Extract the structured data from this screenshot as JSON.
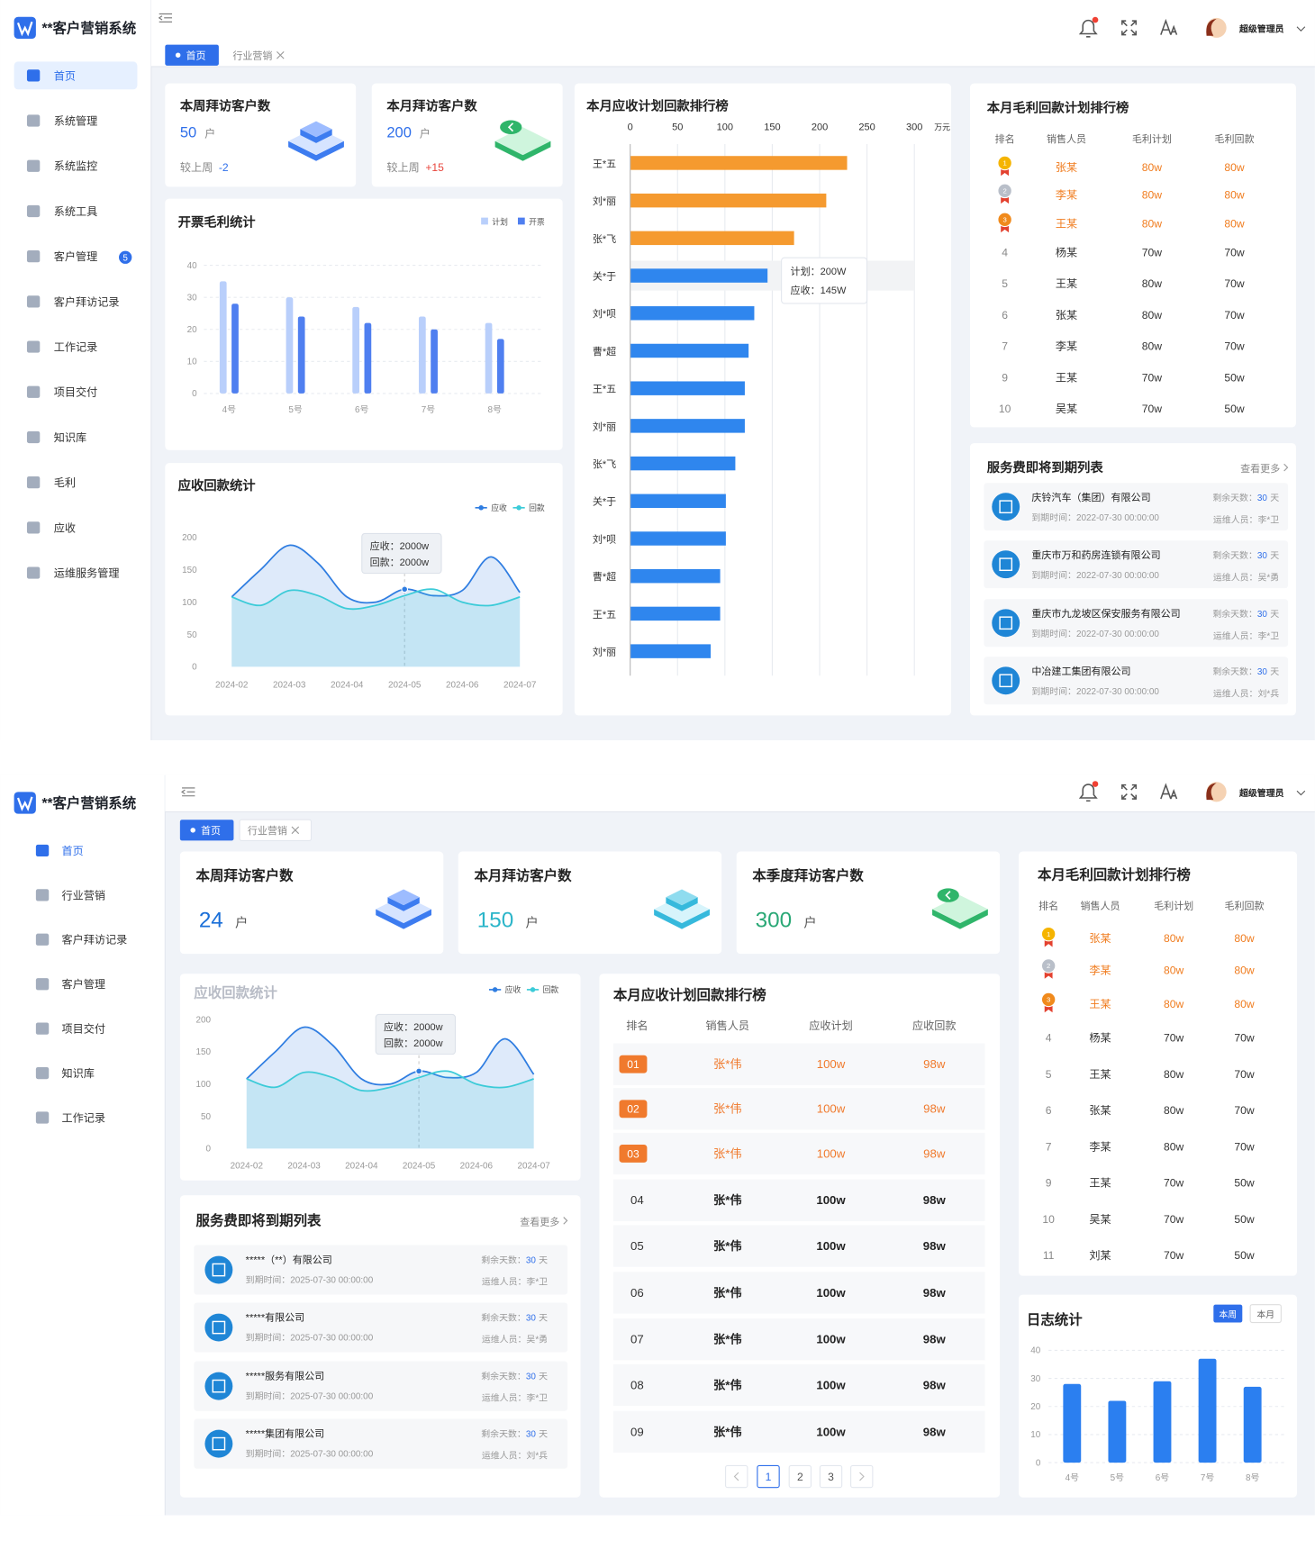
{
  "dashboard1": {
    "app_title": "**客户营销系统",
    "menu": [
      {
        "label": "首页"
      },
      {
        "label": "系统管理"
      },
      {
        "label": "系统监控"
      },
      {
        "label": "系统工具"
      },
      {
        "label": "客户管理",
        "badge": 5
      },
      {
        "label": "客户拜访记录"
      },
      {
        "label": "工作记录"
      },
      {
        "label": "项目交付"
      },
      {
        "label": "知识库"
      },
      {
        "label": "毛利"
      },
      {
        "label": "应收"
      },
      {
        "label": "运维服务管理"
      }
    ],
    "tabs": [
      "首页",
      "行业营销"
    ],
    "user": "超级管理员",
    "stats": [
      {
        "title": "本周拜访客户数",
        "value": 50,
        "unit": "户",
        "compare_label": "较上周",
        "compare": "-2"
      },
      {
        "title": "本月拜访客户数",
        "value": 200,
        "unit": "户",
        "compare_label": "较上周",
        "compare": "+15"
      }
    ],
    "invoice_chart": {
      "type": "bar",
      "title": "开票毛利统计",
      "categories": [
        "4号",
        "5号",
        "6号",
        "7号",
        "8号"
      ],
      "series": [
        {
          "name": "计划",
          "color": "#b9cffb",
          "values": [
            35,
            30,
            27,
            24,
            22
          ]
        },
        {
          "name": "开票",
          "color": "#4f7ff0",
          "values": [
            28,
            24,
            22,
            20,
            17
          ]
        }
      ],
      "ylim": [
        0,
        40
      ],
      "yticks": [
        0,
        10,
        20,
        30,
        40
      ],
      "grid": true
    },
    "receivable_chart": {
      "type": "line",
      "title": "应收回款统计",
      "categories": [
        "2024-02",
        null,
        "2024-03",
        null,
        "2024-04",
        null,
        "2024-05",
        null,
        "2024-06",
        null,
        "2024-07"
      ],
      "series": [
        {
          "name": "应收",
          "color": "#2f7de1",
          "values": [
            108,
            150,
            188,
            160,
            108,
            100,
            120,
            110,
            118,
            170,
            115
          ]
        },
        {
          "name": "回款",
          "color": "#3ccbd8",
          "values": [
            108,
            95,
            118,
            110,
            90,
            95,
            110,
            120,
            100,
            95,
            108
          ]
        }
      ],
      "ylim": [
        0,
        200
      ],
      "yticks": [
        0,
        50,
        100,
        150,
        200
      ],
      "tooltip": [
        "应收：2000w",
        "回款：2000w"
      ]
    },
    "ranking_chart": {
      "type": "hbar",
      "title": "本月应收计划回款排行榜",
      "categories": [
        "王*五",
        "刘*丽",
        "张*飞",
        "关*于",
        "刘*呗",
        "曹*超",
        "王*五",
        "刘*丽",
        "张*飞",
        "关*于",
        "刘*呗",
        "曹*超",
        "王*五",
        "刘*丽"
      ],
      "values": [
        229,
        207,
        173,
        145,
        131,
        125,
        121,
        121,
        111,
        101,
        101,
        95,
        95,
        85
      ],
      "colors": [
        "#f59a2f",
        "#f59a2f",
        "#f59a2f",
        "#2f86ee",
        "#2f86ee",
        "#2f86ee",
        "#2f86ee",
        "#2f86ee",
        "#2f86ee",
        "#2f86ee",
        "#2f86ee",
        "#2f86ee",
        "#2f86ee",
        "#2f86ee"
      ],
      "xlim": [
        0,
        300
      ],
      "xticks": [
        0,
        50,
        100,
        150,
        200,
        250,
        300
      ],
      "xlabel": "万元",
      "grid": true,
      "tooltip": [
        "计划：200W",
        "应收：145W"
      ]
    },
    "profit_ranking": {
      "title": "本月毛利回款计划排行榜",
      "columns": [
        "排名",
        "销售人员",
        "毛利计划",
        "毛利回款"
      ],
      "rows": [
        [
          "1",
          "张某",
          "80w",
          "80w"
        ],
        [
          "2",
          "李某",
          "80w",
          "80w"
        ],
        [
          "3",
          "王某",
          "80w",
          "80w"
        ],
        [
          "4",
          "杨某",
          "70w",
          "70w"
        ],
        [
          "5",
          "王某",
          "80w",
          "70w"
        ],
        [
          "6",
          "张某",
          "80w",
          "70w"
        ],
        [
          "7",
          "李某",
          "80w",
          "70w"
        ],
        [
          "9",
          "王某",
          "70w",
          "50w"
        ],
        [
          "10",
          "吴某",
          "70w",
          "50w"
        ]
      ]
    },
    "service_list": {
      "title": "服务费即将到期列表",
      "more": "查看更多",
      "items": [
        {
          "company": "庆铃汽车（集团）有限公司",
          "due_label": "到期时间：",
          "due": "2022-07-30 00:00:00",
          "remain_label": "剩余天数：",
          "days": 30,
          "days_unit": "天",
          "operator_label": "运维人员：",
          "operator": "李*卫"
        },
        {
          "company": "重庆市万和药房连锁有限公司",
          "due_label": "到期时间：",
          "due": "2022-07-30 00:00:00",
          "remain_label": "剩余天数：",
          "days": 30,
          "days_unit": "天",
          "operator_label": "运维人员：",
          "operator": "吴*勇"
        },
        {
          "company": "重庆市九龙坡区保安服务有限公司",
          "due_label": "到期时间：",
          "due": "2022-07-30 00:00:00",
          "remain_label": "剩余天数：",
          "days": 30,
          "days_unit": "天",
          "operator_label": "运维人员：",
          "operator": "李*卫"
        },
        {
          "company": "中冶建工集团有限公司",
          "due_label": "到期时间：",
          "due": "2022-07-30 00:00:00",
          "remain_label": "剩余天数：",
          "days": 30,
          "days_unit": "天",
          "operator_label": "运维人员：",
          "operator": "刘*兵"
        }
      ]
    }
  },
  "dashboard2": {
    "app_title": "**客户营销系统",
    "menu": [
      {
        "label": "首页"
      },
      {
        "label": "行业营销"
      },
      {
        "label": "客户拜访记录"
      },
      {
        "label": "客户管理"
      },
      {
        "label": "项目交付"
      },
      {
        "label": "知识库"
      },
      {
        "label": "工作记录"
      }
    ],
    "tabs": [
      "首页",
      "行业营销"
    ],
    "user": "超级管理员",
    "stats": [
      {
        "title": "本周拜访客户数",
        "value": 24,
        "unit": "户"
      },
      {
        "title": "本月拜访客户数",
        "value": 150,
        "unit": "户"
      },
      {
        "title": "本季度拜访客户数",
        "value": 300,
        "unit": "户"
      }
    ],
    "receivable_chart": {
      "type": "line",
      "title": "应收回款统计",
      "categories": [
        "2024-02",
        null,
        "2024-03",
        null,
        "2024-04",
        null,
        "2024-05",
        null,
        "2024-06",
        null,
        "2024-07"
      ],
      "series": [
        {
          "name": "应收",
          "color": "#2f7de1",
          "values": [
            108,
            150,
            188,
            160,
            108,
            100,
            120,
            110,
            118,
            170,
            115
          ]
        },
        {
          "name": "回款",
          "color": "#3ccbd8",
          "values": [
            108,
            95,
            118,
            110,
            90,
            95,
            110,
            120,
            100,
            95,
            108
          ]
        }
      ],
      "ylim": [
        0,
        200
      ],
      "yticks": [
        0,
        50,
        100,
        150,
        200
      ],
      "tooltip": [
        "应收：2000w",
        "回款：2000w"
      ]
    },
    "service_list": {
      "title": "服务费即将到期列表",
      "more": "查看更多",
      "items": [
        {
          "company": "*****（**）有限公司",
          "due_label": "到期时间：",
          "due": "2025-07-30 00:00:00",
          "remain_label": "剩余天数：",
          "days": 30,
          "days_unit": "天",
          "operator_label": "运维人员：",
          "operator": "李*卫"
        },
        {
          "company": "*****有限公司",
          "due_label": "到期时间：",
          "due": "2025-07-30 00:00:00",
          "remain_label": "剩余天数：",
          "days": 30,
          "days_unit": "天",
          "operator_label": "运维人员：",
          "operator": "吴*勇"
        },
        {
          "company": "*****服务有限公司",
          "due_label": "到期时间：",
          "due": "2025-07-30 00:00:00",
          "remain_label": "剩余天数：",
          "days": 30,
          "days_unit": "天",
          "operator_label": "运维人员：",
          "operator": "李*卫"
        },
        {
          "company": "*****集团有限公司",
          "due_label": "到期时间：",
          "due": "2025-07-30 00:00:00",
          "remain_label": "剩余天数：",
          "days": 30,
          "days_unit": "天",
          "operator_label": "运维人员：",
          "operator": "刘*兵"
        }
      ]
    },
    "receivable_ranking": {
      "title": "本月应收计划回款排行榜",
      "columns": [
        "排名",
        "销售人员",
        "应收计划",
        "应收回款"
      ],
      "rows": [
        [
          "01",
          "张*伟",
          "100w",
          "98w"
        ],
        [
          "02",
          "张*伟",
          "100w",
          "98w"
        ],
        [
          "03",
          "张*伟",
          "100w",
          "98w"
        ],
        [
          "04",
          "张*伟",
          "100w",
          "98w"
        ],
        [
          "05",
          "张*伟",
          "100w",
          "98w"
        ],
        [
          "06",
          "张*伟",
          "100w",
          "98w"
        ],
        [
          "07",
          "张*伟",
          "100w",
          "98w"
        ],
        [
          "08",
          "张*伟",
          "100w",
          "98w"
        ],
        [
          "09",
          "张*伟",
          "100w",
          "98w"
        ]
      ],
      "pages": [
        "1",
        "2",
        "3"
      ]
    },
    "profit_ranking": {
      "title": "本月毛利回款计划排行榜",
      "columns": [
        "排名",
        "销售人员",
        "毛利计划",
        "毛利回款"
      ],
      "rows": [
        [
          "1",
          "张某",
          "80w",
          "80w"
        ],
        [
          "2",
          "李某",
          "80w",
          "80w"
        ],
        [
          "3",
          "王某",
          "80w",
          "80w"
        ],
        [
          "4",
          "杨某",
          "70w",
          "70w"
        ],
        [
          "5",
          "王某",
          "80w",
          "70w"
        ],
        [
          "6",
          "张某",
          "80w",
          "70w"
        ],
        [
          "7",
          "李某",
          "80w",
          "70w"
        ],
        [
          "9",
          "王某",
          "70w",
          "50w"
        ],
        [
          "10",
          "吴某",
          "70w",
          "50w"
        ],
        [
          "11",
          "刘某",
          "70w",
          "50w"
        ]
      ]
    },
    "log_chart": {
      "type": "bar",
      "title": "日志统计",
      "toggle": [
        "本周",
        "本月"
      ],
      "categories": [
        "4号",
        "5号",
        "6号",
        "7号",
        "8号"
      ],
      "values": [
        28,
        22,
        29,
        37,
        27
      ],
      "color": "#2b7ff0",
      "ylim": [
        0,
        40
      ],
      "yticks": [
        0,
        10,
        20,
        30,
        40
      ],
      "grid": true
    }
  }
}
